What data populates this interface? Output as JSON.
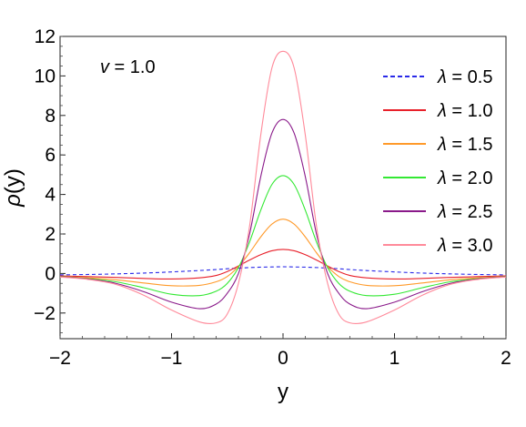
{
  "chart_data": {
    "type": "line",
    "title": "",
    "xlabel": "y",
    "ylabel": "ρ(y)",
    "xlim": [
      -2,
      2
    ],
    "ylim": [
      -3.3,
      12
    ],
    "xticks": [
      -2,
      -1,
      0,
      1,
      2
    ],
    "yticks": [
      -2,
      0,
      2,
      4,
      6,
      8,
      10,
      12
    ],
    "xtick_labels": [
      "−2",
      "−1",
      "0",
      "1",
      "2"
    ],
    "ytick_labels": [
      "−2",
      "0",
      "2",
      "4",
      "6",
      "8",
      "10",
      "12"
    ],
    "grid": false,
    "legend_position": "top-right",
    "annotation": {
      "symbol": "v",
      "rest": " = 1.0"
    },
    "x": [
      -2.0,
      -1.75,
      -1.5,
      -1.25,
      -1.0,
      -0.75,
      -0.6,
      -0.5,
      -0.4,
      -0.3,
      -0.2,
      -0.1,
      0.0,
      0.1,
      0.2,
      0.3,
      0.4,
      0.5,
      0.6,
      0.75,
      1.0,
      1.25,
      1.5,
      1.75,
      2.0
    ],
    "series": [
      {
        "name": "λ = 0.5",
        "symbol": "λ",
        "value_text": " = 0.5",
        "color": "#2a2ae8",
        "dashed": true,
        "values": [
          -0.07,
          -0.05,
          -0.02,
          0.02,
          0.08,
          0.15,
          0.2,
          0.24,
          0.27,
          0.3,
          0.32,
          0.33,
          0.34,
          0.33,
          0.32,
          0.3,
          0.27,
          0.24,
          0.2,
          0.15,
          0.08,
          0.02,
          -0.02,
          -0.05,
          -0.07
        ]
      },
      {
        "name": "λ = 1.0",
        "symbol": "λ",
        "value_text": " = 1.0",
        "color": "#e8202a",
        "dashed": false,
        "values": [
          -0.12,
          -0.16,
          -0.2,
          -0.25,
          -0.28,
          -0.22,
          -0.1,
          0.1,
          0.38,
          0.68,
          0.95,
          1.15,
          1.22,
          1.15,
          0.95,
          0.68,
          0.38,
          0.1,
          -0.1,
          -0.22,
          -0.28,
          -0.25,
          -0.2,
          -0.16,
          -0.12
        ]
      },
      {
        "name": "λ = 1.5",
        "symbol": "λ",
        "value_text": " = 1.5",
        "color": "#ff9a2a",
        "dashed": false,
        "values": [
          -0.15,
          -0.22,
          -0.32,
          -0.48,
          -0.62,
          -0.6,
          -0.42,
          -0.15,
          0.35,
          1.05,
          1.85,
          2.5,
          2.75,
          2.5,
          1.85,
          1.05,
          0.35,
          -0.15,
          -0.42,
          -0.6,
          -0.62,
          -0.48,
          -0.32,
          -0.22,
          -0.15
        ]
      },
      {
        "name": "λ = 2.0",
        "symbol": "λ",
        "value_text": " = 2.0",
        "color": "#33e833",
        "dashed": false,
        "values": [
          -0.16,
          -0.26,
          -0.42,
          -0.72,
          -1.05,
          -1.12,
          -0.9,
          -0.5,
          0.3,
          1.6,
          3.2,
          4.5,
          4.95,
          4.5,
          3.2,
          1.6,
          0.3,
          -0.5,
          -0.9,
          -1.12,
          -1.05,
          -0.72,
          -0.42,
          -0.26,
          -0.16
        ]
      },
      {
        "name": "λ = 2.5",
        "symbol": "λ",
        "value_text": " = 2.5",
        "color": "#8a1a8a",
        "dashed": false,
        "values": [
          -0.17,
          -0.28,
          -0.5,
          -0.92,
          -1.45,
          -1.78,
          -1.55,
          -1.0,
          0.0,
          2.0,
          4.9,
          7.1,
          7.8,
          7.1,
          4.9,
          2.0,
          0.0,
          -1.0,
          -1.55,
          -1.78,
          -1.45,
          -0.92,
          -0.5,
          -0.28,
          -0.17
        ]
      },
      {
        "name": "λ = 3.0",
        "symbol": "λ",
        "value_text": " = 3.0",
        "color": "#ff8a9a",
        "dashed": false,
        "values": [
          -0.18,
          -0.3,
          -0.55,
          -1.1,
          -1.85,
          -2.45,
          -2.5,
          -2.05,
          -0.5,
          2.4,
          7.0,
          10.4,
          11.25,
          10.4,
          7.0,
          2.4,
          -0.5,
          -2.05,
          -2.5,
          -2.45,
          -1.85,
          -1.1,
          -0.55,
          -0.3,
          -0.18
        ]
      }
    ]
  }
}
